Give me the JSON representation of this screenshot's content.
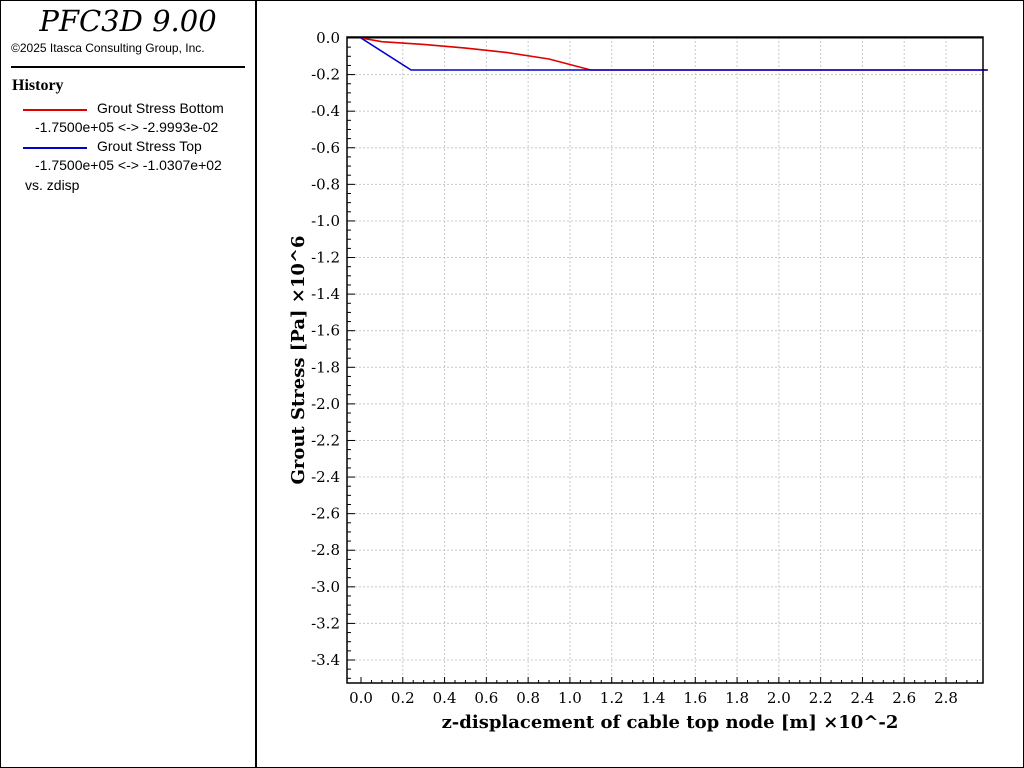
{
  "app": {
    "title": "PFC3D 9.00",
    "copyright": "©2025 Itasca Consulting Group, Inc."
  },
  "legend": {
    "heading": "History",
    "items": [
      {
        "name": "Grout Stress Bottom",
        "range": "-1.7500e+05 <-> -2.9993e-02",
        "color": "#e00000"
      },
      {
        "name": "Grout Stress Top",
        "range": "-1.7500e+05 <-> -1.0307e+02",
        "color": "#0000d0"
      }
    ],
    "vs": "vs. zdisp"
  },
  "chart_data": {
    "type": "line",
    "xlabel": "z-displacement of cable top node [m]",
    "xlabel_multiplier": "×10^-2",
    "ylabel": "Grout Stress [Pa]",
    "ylabel_multiplier": "×10^6",
    "xlim": [
      0,
      3.0
    ],
    "ylim": [
      -3.55,
      0
    ],
    "grid": true,
    "x_ticks": [
      "0.0",
      "0.2",
      "0.4",
      "0.6",
      "0.8",
      "1.0",
      "1.2",
      "1.4",
      "1.6",
      "1.8",
      "2.0",
      "2.2",
      "2.4",
      "2.6",
      "2.8"
    ],
    "x_tick_values": [
      0,
      0.2,
      0.4,
      0.6,
      0.8,
      1.0,
      1.2,
      1.4,
      1.6,
      1.8,
      2.0,
      2.2,
      2.4,
      2.6,
      2.8
    ],
    "y_ticks": [
      "0.0",
      "-0.2",
      "-0.4",
      "-0.6",
      "-0.8",
      "-1.0",
      "-1.2",
      "-1.4",
      "-1.6",
      "-1.8",
      "-2.0",
      "-2.2",
      "-2.4",
      "-2.6",
      "-2.8",
      "-3.0",
      "-3.2",
      "-3.4"
    ],
    "y_tick_values": [
      0,
      -0.2,
      -0.4,
      -0.6,
      -0.8,
      -1.0,
      -1.2,
      -1.4,
      -1.6,
      -1.8,
      -2.0,
      -2.2,
      -2.4,
      -2.6,
      -2.8,
      -3.0,
      -3.2,
      -3.4
    ],
    "series": [
      {
        "name": "Grout Stress Bottom",
        "color": "#e00000",
        "x": [
          0,
          0.1,
          0.3,
          0.5,
          0.7,
          0.9,
          1.0,
          1.1,
          1.2,
          3.0
        ],
        "y": [
          0,
          -0.02,
          -0.035,
          -0.055,
          -0.08,
          -0.115,
          -0.145,
          -0.175,
          -0.175,
          -0.175
        ]
      },
      {
        "name": "Grout Stress Top",
        "color": "#0000d0",
        "x": [
          0,
          0.24,
          3.0
        ],
        "y": [
          0,
          -0.175,
          -0.175
        ]
      }
    ]
  }
}
